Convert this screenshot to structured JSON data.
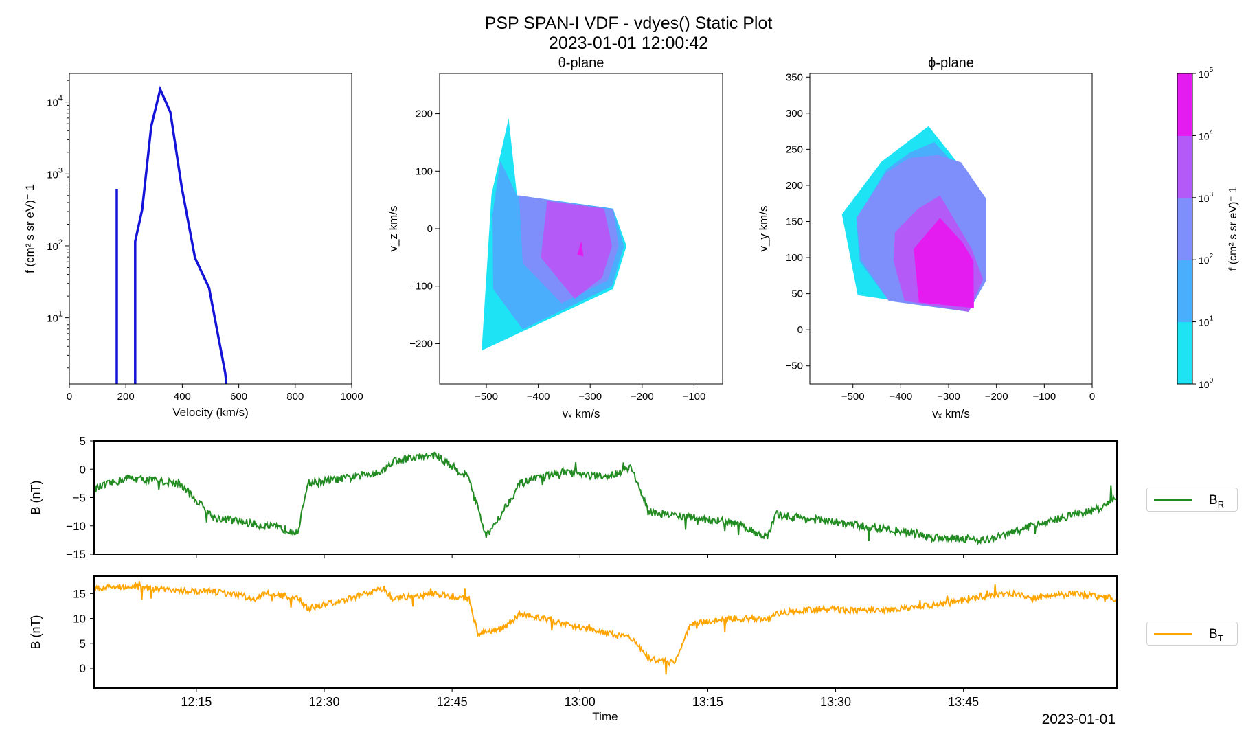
{
  "title": "PSP SPAN-I VDF - vdyes() Static Plot",
  "subtitle": "2023-01-01 12:00:42",
  "chart_data": [
    {
      "id": "energy_spectrum",
      "type": "line",
      "xlabel": "Velocity (km/s)",
      "ylabel": "f (cm² s sr eV)⁻ 1",
      "xlim": [
        0,
        1000
      ],
      "ylim": [
        1.2,
        25000
      ],
      "yscale": "log",
      "xticks": [
        0,
        200,
        400,
        600,
        800,
        1000
      ],
      "yticks": [
        "10^1",
        "10^2",
        "10^3",
        "10^4"
      ],
      "color": "#1414d9",
      "series": [
        {
          "x": [
            168,
            168
          ],
          "y": [
            1.2,
            620
          ]
        },
        {
          "x": [
            233,
            233,
            258,
            290,
            322,
            358,
            398,
            445,
            495,
            552,
            556
          ],
          "y": [
            1.2,
            115,
            320,
            4600,
            15000,
            7200,
            650,
            68,
            26,
            1.7,
            1.2
          ]
        }
      ]
    },
    {
      "id": "theta_plane",
      "type": "contour",
      "title": "θ-plane",
      "xlabel": "vₓ km/s",
      "ylabel": "v_z km/s",
      "xlim": [
        -590,
        -45
      ],
      "ylim": [
        -270,
        270
      ],
      "xticks": [
        -500,
        -400,
        -300,
        -200,
        -100
      ],
      "yticks": [
        -200,
        -100,
        0,
        100,
        200
      ],
      "levels": [
        {
          "level": "10^0–10^1",
          "color": "#1ee3f5",
          "poly": [
            [
              -457,
              192
            ],
            [
              -441,
              58
            ],
            [
              -256,
              35
            ],
            [
              -230,
              -30
            ],
            [
              -256,
              -105
            ],
            [
              -509,
              -212
            ],
            [
              -490,
              60
            ]
          ]
        },
        {
          "level": "10^1–10^2",
          "color": "#4aaefc",
          "poly": [
            [
              -473,
              118
            ],
            [
              -441,
              58
            ],
            [
              -256,
              35
            ],
            [
              -235,
              -30
            ],
            [
              -258,
              -100
            ],
            [
              -430,
              -175
            ],
            [
              -487,
              -105
            ],
            [
              -488,
              25
            ]
          ]
        },
        {
          "level": "10^2–10^3",
          "color": "#7e8efb",
          "poly": [
            [
              -437,
              58
            ],
            [
              -256,
              33
            ],
            [
              -245,
              -30
            ],
            [
              -266,
              -90
            ],
            [
              -355,
              -130
            ],
            [
              -430,
              -60
            ]
          ]
        },
        {
          "level": "10^3–10^4",
          "color": "#b45af7",
          "poly": [
            [
              -383,
              48
            ],
            [
              -273,
              35
            ],
            [
              -258,
              -30
            ],
            [
              -277,
              -85
            ],
            [
              -330,
              -122
            ],
            [
              -395,
              -50
            ]
          ]
        },
        {
          "level": "10^4–10^5",
          "color": "#e51cf0",
          "poly": [
            [
              -317,
              -22
            ],
            [
              -313,
              -48
            ],
            [
              -325,
              -45
            ]
          ]
        }
      ]
    },
    {
      "id": "phi_plane",
      "type": "contour",
      "title": "ϕ-plane",
      "xlabel": "vₓ km/s",
      "ylabel": "v_y km/s",
      "xlim": [
        -590,
        0
      ],
      "ylim": [
        -75,
        355
      ],
      "xticks": [
        -500,
        -400,
        -300,
        -200,
        -100,
        0
      ],
      "yticks": [
        -50,
        0,
        50,
        100,
        150,
        200,
        250,
        300,
        350
      ],
      "levels": [
        {
          "level": "10^0–10^1",
          "color": "#1ee3f5",
          "poly": [
            [
              -523,
              160
            ],
            [
              -440,
              233
            ],
            [
              -342,
              282
            ],
            [
              -222,
              182
            ],
            [
              -222,
              68
            ],
            [
              -258,
              25
            ],
            [
              -490,
              48
            ]
          ]
        },
        {
          "level": "10^1–10^2",
          "color": "#4aaefc",
          "poly": [
            [
              -493,
              153
            ],
            [
              -430,
              222
            ],
            [
              -382,
              245
            ],
            [
              -330,
              260
            ],
            [
              -222,
              182
            ],
            [
              -222,
              68
            ],
            [
              -258,
              25
            ],
            [
              -425,
              40
            ],
            [
              -486,
              95
            ]
          ]
        },
        {
          "level": "10^2–10^3",
          "color": "#7e8efb",
          "poly": [
            [
              -493,
              155
            ],
            [
              -430,
              218
            ],
            [
              -382,
              238
            ],
            [
              -323,
              242
            ],
            [
              -274,
              232
            ],
            [
              -222,
              182
            ],
            [
              -222,
              68
            ],
            [
              -258,
              25
            ],
            [
              -425,
              40
            ],
            [
              -483,
              97
            ]
          ]
        },
        {
          "level": "10^3–10^4",
          "color": "#b45af7",
          "poly": [
            [
              -412,
              135
            ],
            [
              -363,
              168
            ],
            [
              -318,
              186
            ],
            [
              -252,
              112
            ],
            [
              -228,
              70
            ],
            [
              -258,
              25
            ],
            [
              -392,
              40
            ],
            [
              -415,
              95
            ]
          ]
        },
        {
          "level": "10^4–10^5",
          "color": "#e51cf0",
          "poly": [
            [
              -373,
              112
            ],
            [
              -318,
              155
            ],
            [
              -270,
              120
            ],
            [
              -248,
              95
            ],
            [
              -247,
              30
            ],
            [
              -362,
              38
            ]
          ]
        }
      ]
    },
    {
      "id": "colorbar",
      "type": "heatmap",
      "label": "f (cm² s sr eV)⁻ 1",
      "scale": "log",
      "ticks": [
        "10^0",
        "10^1",
        "10^2",
        "10^3",
        "10^4",
        "10^5"
      ],
      "colors": [
        "#1ee3f5",
        "#4aaefc",
        "#7e8efb",
        "#b45af7",
        "#e51cf0"
      ]
    },
    {
      "id": "br_timeseries",
      "type": "line",
      "ylabel": "B (nT)",
      "series_name": "B_R",
      "legend_label": "B",
      "legend_sub": "R",
      "color": "#228b22",
      "ylim": [
        -15,
        5
      ],
      "yticks": [
        -15,
        -10,
        -5,
        0,
        5
      ],
      "t_range_min": [
        0,
        120
      ],
      "time": [
        0,
        4,
        10,
        14,
        20,
        24,
        25,
        30,
        34,
        35,
        40,
        44,
        46,
        50,
        55,
        60,
        63,
        65,
        70,
        75,
        79,
        80,
        85,
        90,
        95,
        97,
        98,
        100,
        105,
        110,
        115,
        118,
        120
      ],
      "values": [
        -3.5,
        -1.5,
        -2.5,
        -8.5,
        -10,
        -11,
        -2.5,
        -1.5,
        -0.2,
        1.5,
        2.5,
        -1.5,
        -12,
        -2.5,
        -0.5,
        -1.5,
        0.5,
        -7.5,
        -8.5,
        -9.5,
        -12,
        -8,
        -9,
        -10,
        -11,
        -11.5,
        -12,
        -12,
        -12.5,
        -10,
        -8,
        -7,
        -5
      ]
    },
    {
      "id": "bt_timeseries",
      "type": "line",
      "ylabel": "B (nT)",
      "series_name": "B_T",
      "legend_label": "B",
      "legend_sub": "T",
      "color": "#ffa500",
      "ylim": [
        -4,
        18.5
      ],
      "yticks": [
        0,
        5,
        10,
        15
      ],
      "xticks": [
        "12:15",
        "12:30",
        "12:45",
        "13:00",
        "13:15",
        "13:30",
        "13:45"
      ],
      "xlabel": "Time",
      "date_label": "2023-01-01",
      "time": [
        0,
        4,
        10,
        14,
        19,
        20,
        24,
        25,
        30,
        34,
        35,
        40,
        44,
        45,
        48,
        50,
        55,
        60,
        63,
        65,
        68,
        70,
        75,
        79,
        80,
        85,
        90,
        95,
        100,
        105,
        108,
        110,
        115,
        120
      ],
      "values": [
        16,
        16.5,
        15.5,
        15.5,
        14,
        15,
        14,
        12,
        14,
        16,
        14,
        15,
        14,
        7,
        8,
        11,
        9,
        7,
        6,
        2,
        1,
        9,
        10,
        10,
        11,
        12,
        11.5,
        12,
        13,
        14.5,
        15,
        14,
        15,
        14
      ]
    }
  ]
}
